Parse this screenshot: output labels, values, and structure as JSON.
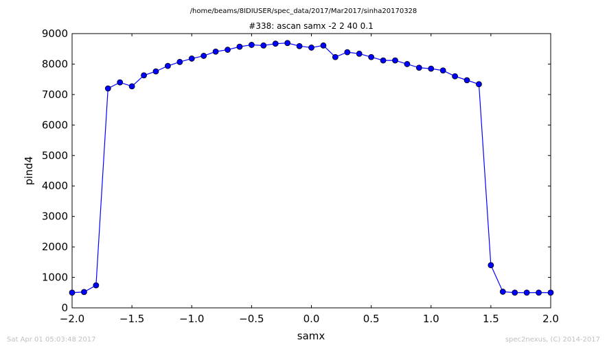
{
  "chart_data": {
    "type": "line",
    "suptitle": "/home/beams/8IDIUSER/spec_data/2017/Mar2017/sinha20170328",
    "title": "#338: ascan  samx -2 2  40 0.1",
    "xlabel": "samx",
    "ylabel": "pind4",
    "xlim": [
      -2.0,
      2.0
    ],
    "ylim": [
      0,
      9000
    ],
    "xticks": [
      -2.0,
      -1.5,
      -1.0,
      -0.5,
      0.0,
      0.5,
      1.0,
      1.5,
      2.0
    ],
    "xtick_labels": [
      "−2.0",
      "−1.5",
      "−1.0",
      "−0.5",
      "0.0",
      "0.5",
      "1.0",
      "1.5",
      "2.0"
    ],
    "yticks": [
      0,
      1000,
      2000,
      3000,
      4000,
      5000,
      6000,
      7000,
      8000,
      9000
    ],
    "ytick_labels": [
      "0",
      "1000",
      "2000",
      "3000",
      "4000",
      "5000",
      "6000",
      "7000",
      "8000",
      "9000"
    ],
    "grid": false,
    "color": "#0000ff",
    "series": [
      {
        "x": [
          -2.0,
          -1.9,
          -1.8,
          -1.7,
          -1.6,
          -1.5,
          -1.4,
          -1.3,
          -1.2,
          -1.1,
          -1.0,
          -0.9,
          -0.8,
          -0.7,
          -0.6,
          -0.5,
          -0.4,
          -0.3,
          -0.2,
          -0.1,
          0.0,
          0.1,
          0.2,
          0.3,
          0.4,
          0.5,
          0.6,
          0.7,
          0.8,
          0.9,
          1.0,
          1.1,
          1.2,
          1.3,
          1.4,
          1.5,
          1.6,
          1.7,
          1.8,
          1.9,
          2.0
        ],
        "y": [
          500,
          520,
          740,
          7200,
          7400,
          7270,
          7630,
          7760,
          7940,
          8070,
          8180,
          8270,
          8410,
          8470,
          8570,
          8630,
          8610,
          8670,
          8690,
          8590,
          8540,
          8610,
          8230,
          8390,
          8340,
          8230,
          8120,
          8120,
          8000,
          7880,
          7850,
          7790,
          7600,
          7470,
          7340,
          1400,
          530,
          500,
          500,
          500,
          500
        ]
      }
    ]
  },
  "footer": {
    "timestamp": "Sat Apr 01 05:03:48 2017",
    "credit": "spec2nexus, (C) 2014-2017"
  }
}
